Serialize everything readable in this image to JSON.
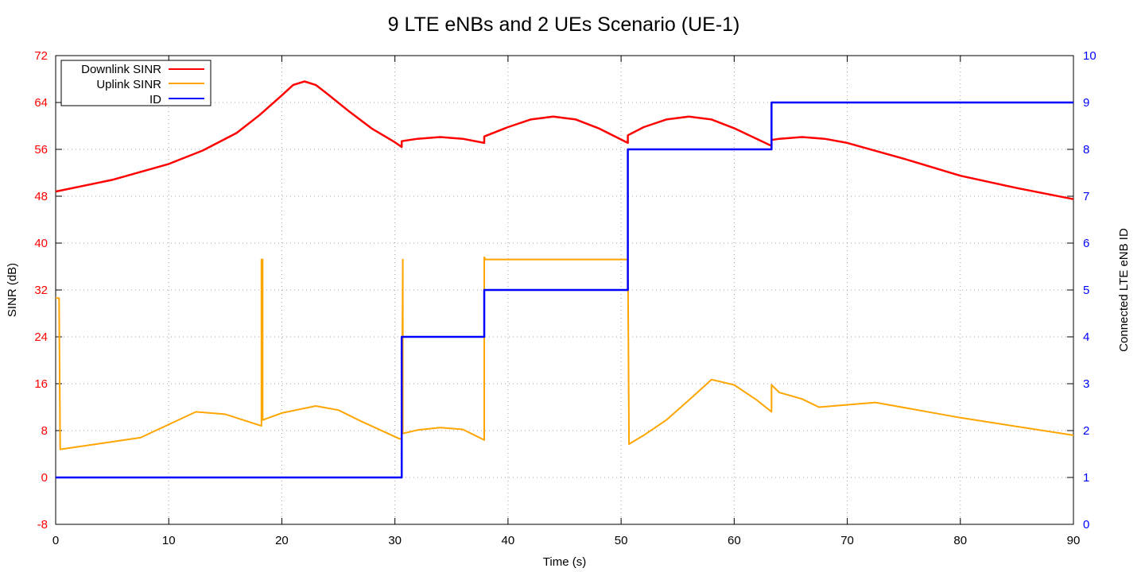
{
  "chart_data": {
    "type": "line",
    "title": "9 LTE eNBs and 2 UEs Scenario (UE-1)",
    "xlabel": "Time (s)",
    "ylabel": "SINR (dB)",
    "y2label": "Connected LTE eNB ID",
    "xlim": [
      0,
      90
    ],
    "ylim": [
      -8,
      72
    ],
    "y2lim": [
      0,
      10
    ],
    "xticks": [
      0,
      10,
      20,
      30,
      40,
      50,
      60,
      70,
      80,
      90
    ],
    "yticks": [
      -8,
      0,
      8,
      16,
      24,
      32,
      40,
      48,
      56,
      64,
      72
    ],
    "y2ticks": [
      0,
      1,
      2,
      3,
      4,
      5,
      6,
      7,
      8,
      9,
      10
    ],
    "grid": true,
    "legend_position": "top-left",
    "colors": {
      "left_axis": "#ff0000",
      "right_axis": "#0000ff"
    },
    "series": [
      {
        "name": "Downlink SINR",
        "axis": "left",
        "color": "#ff0000",
        "x": [
          0,
          5,
          10,
          13,
          16,
          18,
          20,
          21,
          22,
          23,
          24,
          26,
          28,
          30,
          30.6,
          30.6,
          32,
          34,
          36,
          37.9,
          37.9,
          40,
          42,
          44,
          46,
          48,
          50.6,
          50.6,
          52,
          54,
          56,
          58,
          60,
          63.3,
          63.3,
          64,
          66,
          68,
          70,
          75,
          80,
          85,
          90
        ],
        "y": [
          48.8,
          50.8,
          53.5,
          55.8,
          58.8,
          61.8,
          65.2,
          67,
          67.6,
          67,
          65.5,
          62.4,
          59.5,
          57.2,
          56.4,
          57.4,
          57.8,
          58.1,
          57.8,
          57.1,
          58.2,
          59.8,
          61.1,
          61.6,
          61.1,
          59.6,
          57.1,
          58.4,
          59.8,
          61.1,
          61.6,
          61.1,
          59.6,
          56.6,
          57.6,
          57.8,
          58.1,
          57.8,
          57.1,
          54.4,
          51.5,
          49.4,
          47.5
        ]
      },
      {
        "name": "Uplink SINR",
        "axis": "left",
        "color": "#ffa500",
        "x": [
          0,
          0.3,
          0.4,
          7.5,
          12.4,
          15,
          18.2,
          18.2,
          18.3,
          18.3,
          20,
          23,
          25,
          27,
          30.4,
          30.6,
          30.7,
          30.7,
          32,
          34,
          36,
          37.9,
          37.9,
          38,
          50.6,
          50.6,
          50.7,
          52,
          54,
          56,
          58,
          60,
          62,
          63.3,
          63.3,
          64,
          66,
          67.5,
          72.5,
          80,
          90
        ],
        "y": [
          30.6,
          30.6,
          4.8,
          6.8,
          11.2,
          10.8,
          8.8,
          37.2,
          37.2,
          9.8,
          11,
          12.2,
          11.5,
          9.6,
          6.6,
          6.6,
          37.2,
          7.5,
          8.1,
          8.5,
          8.2,
          6.4,
          37.6,
          37.2,
          37.2,
          37.2,
          5.7,
          7.2,
          9.8,
          13.2,
          16.7,
          15.8,
          13.2,
          11.2,
          15.8,
          14.5,
          13.4,
          12,
          12.8,
          10.2,
          7.2
        ]
      },
      {
        "name": "ID",
        "axis": "right",
        "color": "#0000ff",
        "x": [
          0,
          30.6,
          30.6,
          37.9,
          37.9,
          50.6,
          50.6,
          63.3,
          63.3,
          90
        ],
        "y": [
          1,
          1,
          4,
          4,
          5,
          5,
          8,
          8,
          9,
          9
        ]
      }
    ]
  }
}
